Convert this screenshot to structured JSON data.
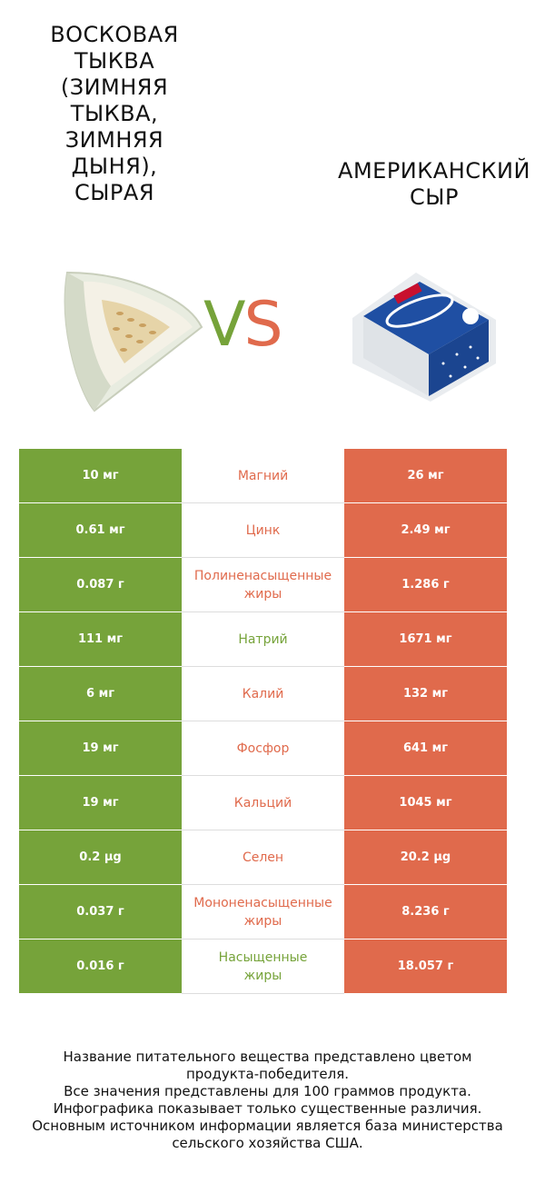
{
  "left_food": {
    "title": "Восковая тыква (Зимняя тыква, Зимняя дыня), сырая",
    "color": "#76a33a",
    "icon": "wax-gourd-image"
  },
  "right_food": {
    "title": "Американский\nсыр",
    "color": "#e06a4c",
    "icon": "american-cheese-image"
  },
  "vs": {
    "v": "V",
    "s": "S"
  },
  "rows": [
    {
      "left": "10 мг",
      "nutrient": "Магний",
      "right": "26 мг",
      "winner": "right"
    },
    {
      "left": "0.61 мг",
      "nutrient": "Цинк",
      "right": "2.49 мг",
      "winner": "right"
    },
    {
      "left": "0.087 г",
      "nutrient": "Полиненасыщенные\nжиры",
      "right": "1.286 г",
      "winner": "right"
    },
    {
      "left": "111 мг",
      "nutrient": "Натрий",
      "right": "1671 мг",
      "winner": "left"
    },
    {
      "left": "6 мг",
      "nutrient": "Калий",
      "right": "132 мг",
      "winner": "right"
    },
    {
      "left": "19 мг",
      "nutrient": "Фосфор",
      "right": "641 мг",
      "winner": "right"
    },
    {
      "left": "19 мг",
      "nutrient": "Кальций",
      "right": "1045 мг",
      "winner": "right"
    },
    {
      "left": "0.2 µg",
      "nutrient": "Селен",
      "right": "20.2 µg",
      "winner": "right"
    },
    {
      "left": "0.037 г",
      "nutrient": "Мононенасыщенные\nжиры",
      "right": "8.236 г",
      "winner": "right"
    },
    {
      "left": "0.016 г",
      "nutrient": "Насыщенные\nжиры",
      "right": "18.057 г",
      "winner": "left"
    }
  ],
  "footer": "Название питательного вещества представлено цветом\nпродукта-победителя.\nВсе значения представлены для 100 граммов продукта.\nИнфографика показывает только существенные различия.\nОсновным источником информации является база министерства\nсельского хозяйства США."
}
